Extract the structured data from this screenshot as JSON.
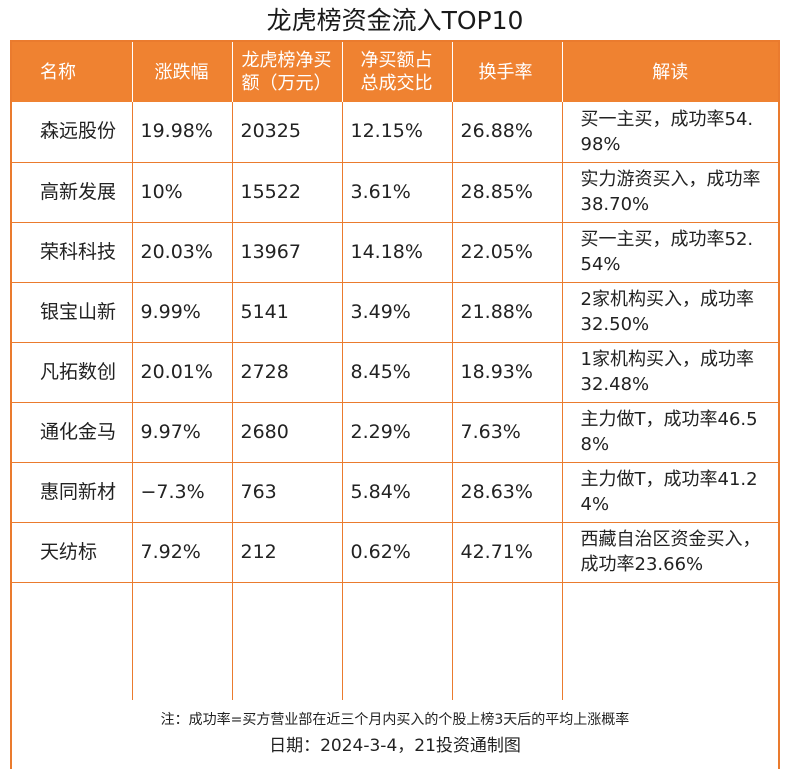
{
  "title": "龙虎榜资金流入TOP10",
  "headers": {
    "name": "名称",
    "change": "涨跌幅",
    "net_buy_line1": "龙虎榜净买",
    "net_buy_line2": "额（万元）",
    "net_ratio_line1": "净买额占",
    "net_ratio_line2": "总成交比",
    "turnover": "换手率",
    "reading": "解读"
  },
  "rows": [
    {
      "name": "森远股份",
      "change": "19.98%",
      "net_buy": "20325",
      "net_ratio": "12.15%",
      "turnover": "26.88%",
      "reading": "买一主买，成功率54.98%"
    },
    {
      "name": "高新发展",
      "change": "10%",
      "net_buy": "15522",
      "net_ratio": "3.61%",
      "turnover": "28.85%",
      "reading": "实力游资买入，成功率38.70%"
    },
    {
      "name": "荣科科技",
      "change": "20.03%",
      "net_buy": "13967",
      "net_ratio": "14.18%",
      "turnover": "22.05%",
      "reading": "买一主买，成功率52.54%"
    },
    {
      "name": "银宝山新",
      "change": "9.99%",
      "net_buy": "5141",
      "net_ratio": "3.49%",
      "turnover": "21.88%",
      "reading": "2家机构买入，成功率32.50%"
    },
    {
      "name": "凡拓数创",
      "change": "20.01%",
      "net_buy": "2728",
      "net_ratio": "8.45%",
      "turnover": "18.93%",
      "reading": "1家机构买入，成功率32.48%"
    },
    {
      "name": "通化金马",
      "change": "9.97%",
      "net_buy": "2680",
      "net_ratio": "2.29%",
      "turnover": "7.63%",
      "reading": "主力做T，成功率46.58%"
    },
    {
      "name": "惠同新材",
      "change": "−7.3%",
      "net_buy": "763",
      "net_ratio": "5.84%",
      "turnover": "28.63%",
      "reading": "主力做T，成功率41.24%"
    },
    {
      "name": "天纺标",
      "change": "7.92%",
      "net_buy": "212",
      "net_ratio": "0.62%",
      "turnover": "42.71%",
      "reading": "西藏自治区资金买入，成功率23.66%"
    }
  ],
  "footer": {
    "note": "注：成功率=买方营业部在近三个月内买入的个股上榜3天后的平均上涨概率",
    "date": "日期：2024-3-4，21投资通制图"
  },
  "colors": {
    "accent": "#ef8231",
    "border": "#ea7b2e",
    "header_text": "#ffffff"
  }
}
